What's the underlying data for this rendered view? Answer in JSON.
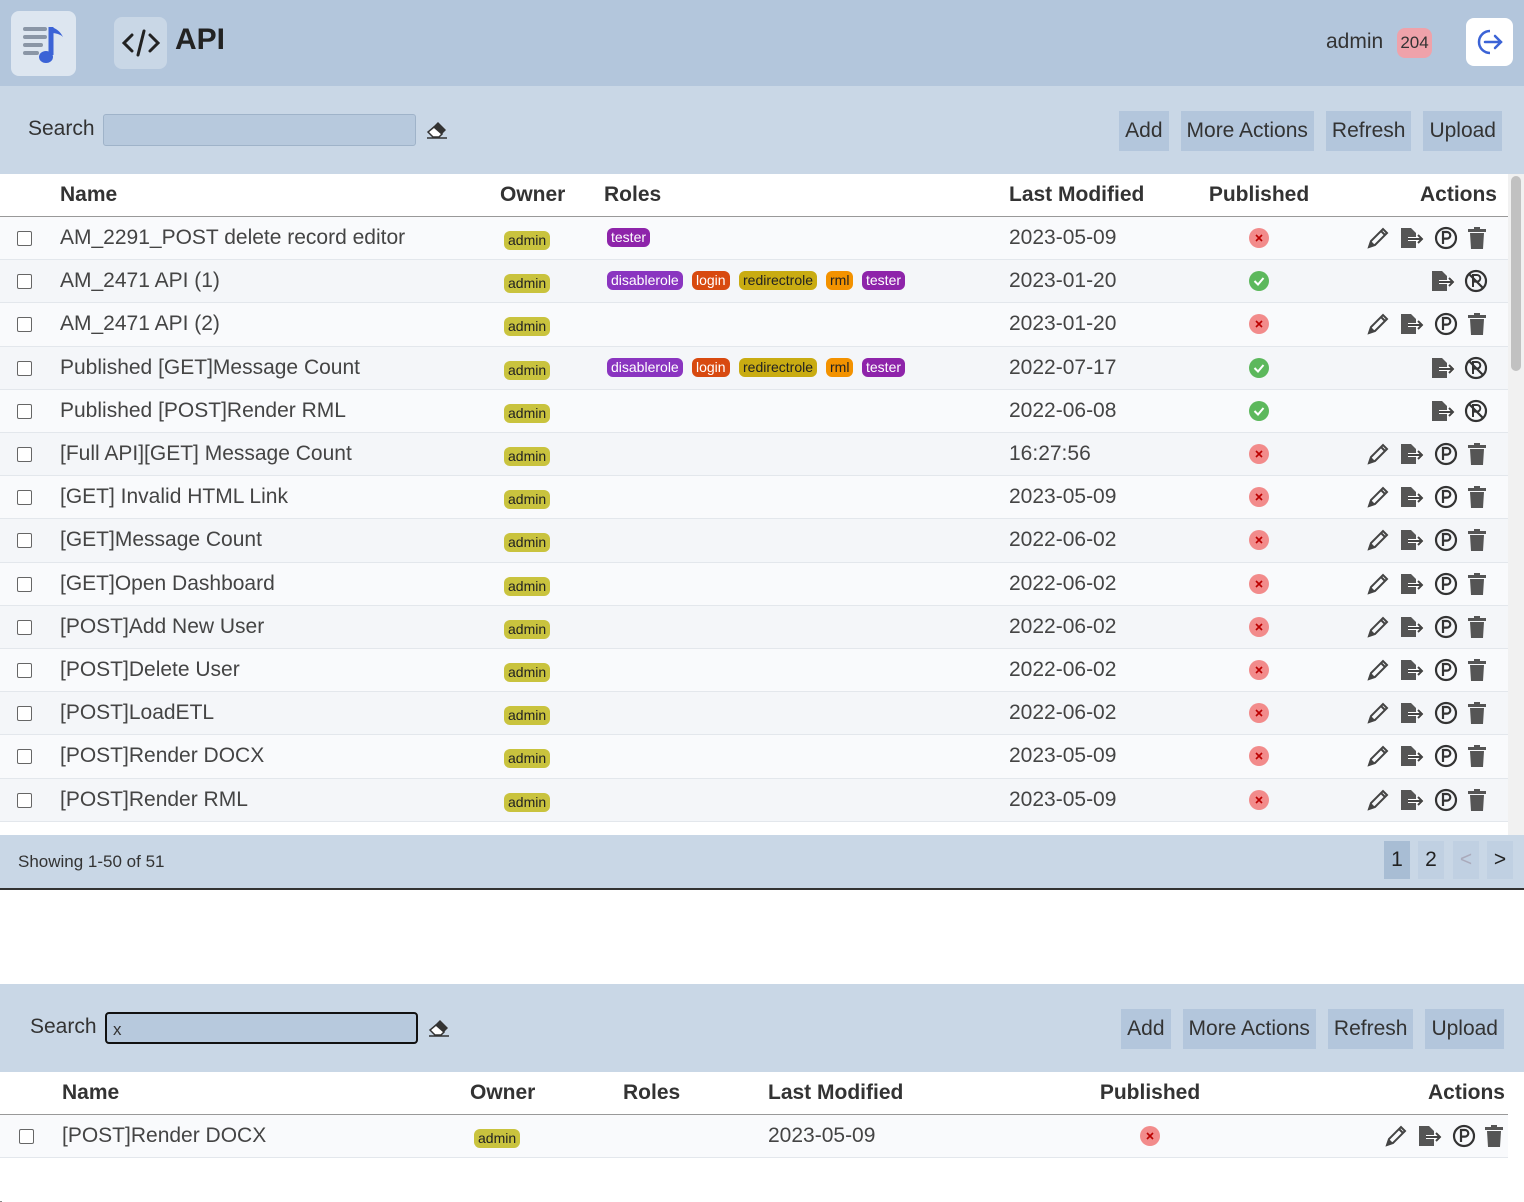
{
  "header": {
    "title": "API",
    "user": "admin",
    "badge": "204"
  },
  "role_colors": {
    "tester": [
      "#8e24aa",
      "#fff"
    ],
    "disablerole": [
      "#8a35c0",
      "#fff"
    ],
    "login": [
      "#d84a10",
      "#fff"
    ],
    "redirectrole": [
      "#c9ac12",
      "#222"
    ],
    "rml": [
      "#f39200",
      "#222"
    ]
  },
  "owner_color": [
    "#c9c33e",
    "#222"
  ],
  "panels": [
    {
      "search_label": "Search",
      "buttons": [
        "Add",
        "More Actions",
        "Refresh",
        "Upload"
      ],
      "columns": [
        "Name",
        "Owner",
        "Roles",
        "Last Modified",
        "Published",
        "Actions"
      ],
      "rows": [
        {
          "name": "AM_2291_POST delete record editor",
          "owner": "admin",
          "roles": [
            "tester"
          ],
          "last_modified": "2023-05-09",
          "published": false
        },
        {
          "name": "AM_2471 API (1)",
          "owner": "admin",
          "roles": [
            "disablerole",
            "login",
            "redirectrole",
            "rml",
            "tester"
          ],
          "last_modified": "2023-01-20",
          "published": true
        },
        {
          "name": "AM_2471 API (2)",
          "owner": "admin",
          "roles": [],
          "last_modified": "2023-01-20",
          "published": false
        },
        {
          "name": "Published [GET]Message Count",
          "owner": "admin",
          "roles": [
            "disablerole",
            "login",
            "redirectrole",
            "rml",
            "tester"
          ],
          "last_modified": "2022-07-17",
          "published": true
        },
        {
          "name": "Published [POST]Render RML",
          "owner": "admin",
          "roles": [],
          "last_modified": "2022-06-08",
          "published": true
        },
        {
          "name": "[Full API][GET] Message Count",
          "owner": "admin",
          "roles": [],
          "last_modified": "16:27:56",
          "published": false
        },
        {
          "name": "[GET] Invalid HTML Link",
          "owner": "admin",
          "roles": [],
          "last_modified": "2023-05-09",
          "published": false
        },
        {
          "name": "[GET]Message Count",
          "owner": "admin",
          "roles": [],
          "last_modified": "2022-06-02",
          "published": false
        },
        {
          "name": "[GET]Open Dashboard",
          "owner": "admin",
          "roles": [],
          "last_modified": "2022-06-02",
          "published": false
        },
        {
          "name": "[POST]Add New User",
          "owner": "admin",
          "roles": [],
          "last_modified": "2022-06-02",
          "published": false
        },
        {
          "name": "[POST]Delete User",
          "owner": "admin",
          "roles": [],
          "last_modified": "2022-06-02",
          "published": false
        },
        {
          "name": "[POST]LoadETL",
          "owner": "admin",
          "roles": [],
          "last_modified": "2022-06-02",
          "published": false
        },
        {
          "name": "[POST]Render DOCX",
          "owner": "admin",
          "roles": [],
          "last_modified": "2023-05-09",
          "published": false
        },
        {
          "name": "[POST]Render RML",
          "owner": "admin",
          "roles": [],
          "last_modified": "2023-05-09",
          "published": false
        }
      ],
      "footer": "Showing 1-50 of 51",
      "pages": [
        "1",
        "2",
        "<",
        ">"
      ]
    },
    {
      "search_label": "Search",
      "search_value": "x",
      "buttons": [
        "Add",
        "More Actions",
        "Refresh",
        "Upload"
      ],
      "columns": [
        "Name",
        "Owner",
        "Roles",
        "Last Modified",
        "Published",
        "Actions"
      ],
      "rows": [
        {
          "name": "[POST]Render DOCX",
          "owner": "admin",
          "roles": [],
          "last_modified": "2023-05-09",
          "published": false
        }
      ]
    }
  ]
}
